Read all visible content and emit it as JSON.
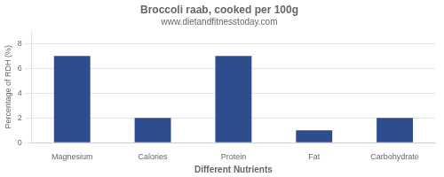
{
  "chart_data": {
    "type": "bar",
    "title": "Broccoli raab, cooked per 100g",
    "subtitle": "www.dietandfitnesstoday.com",
    "xlabel": "Different Nutrients",
    "ylabel": "Percentage of RDH (%)",
    "categories": [
      "Magnesium",
      "Calories",
      "Protein",
      "Fat",
      "Carbohydrate"
    ],
    "values": [
      7,
      2,
      7,
      1,
      2
    ],
    "color": "#2e4d8e",
    "ylim": [
      0,
      9
    ],
    "yticks": [
      0,
      2,
      4,
      6,
      8
    ],
    "grid": true
  }
}
